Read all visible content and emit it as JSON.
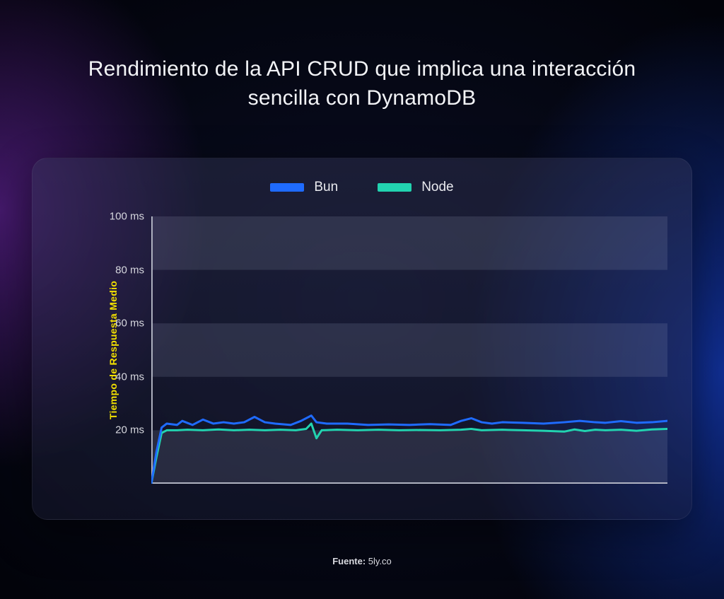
{
  "title": "Rendimiento de la API CRUD que implica una interacción sencilla con DynamoDB",
  "footer_prefix": "Fuente: ",
  "footer_source": "5ly.co",
  "chart": {
    "type": "line",
    "background_color": "transparent",
    "panel_bg": "rgba(55,58,92,0.42)",
    "y_axis": {
      "label": "Tiempo de Respuesta Medio",
      "label_color": "#f2e000",
      "min": 0,
      "max": 100,
      "ticks": [
        20,
        40,
        60,
        80,
        100
      ],
      "tick_suffix": " ms",
      "tick_color": "#d6d7de",
      "tick_fontsize": 15
    },
    "grid": {
      "band_color_a": "rgba(150,155,185,0.18)",
      "band_color_b": "rgba(0,0,0,0.00)",
      "axis_color": "#b9bcc9",
      "axis_width": 1.4
    },
    "x_axis": {
      "min": 0,
      "max": 100
    },
    "line_width": 3,
    "legend": {
      "items": [
        {
          "key": "bun",
          "label": "Bun",
          "color": "#1f6bff"
        },
        {
          "key": "node",
          "label": "Node",
          "color": "#22d3b0"
        }
      ],
      "swatch_w": 48,
      "swatch_h": 12,
      "gap": 56,
      "fontsize": 19
    },
    "series": {
      "bun": {
        "color": "#1f6bff",
        "points": [
          [
            0,
            0
          ],
          [
            1,
            12
          ],
          [
            2,
            21
          ],
          [
            3,
            22.5
          ],
          [
            5,
            22
          ],
          [
            6,
            23.5
          ],
          [
            8,
            22
          ],
          [
            10,
            24
          ],
          [
            12,
            22.5
          ],
          [
            14,
            23
          ],
          [
            16,
            22.5
          ],
          [
            18,
            23
          ],
          [
            20,
            25
          ],
          [
            22,
            23
          ],
          [
            24,
            22.5
          ],
          [
            27,
            22
          ],
          [
            29,
            23.5
          ],
          [
            31,
            25.5
          ],
          [
            32,
            23
          ],
          [
            34,
            22.5
          ],
          [
            38,
            22.5
          ],
          [
            42,
            22
          ],
          [
            46,
            22.2
          ],
          [
            50,
            22
          ],
          [
            54,
            22.3
          ],
          [
            58,
            22
          ],
          [
            60,
            23.5
          ],
          [
            62,
            24.5
          ],
          [
            64,
            23
          ],
          [
            66,
            22.5
          ],
          [
            68,
            23
          ],
          [
            72,
            22.8
          ],
          [
            76,
            22.5
          ],
          [
            80,
            23
          ],
          [
            83,
            23.5
          ],
          [
            86,
            23
          ],
          [
            88,
            22.8
          ],
          [
            91,
            23.4
          ],
          [
            94,
            22.8
          ],
          [
            97,
            23
          ],
          [
            100,
            23.5
          ]
        ]
      },
      "node": {
        "color": "#22d3b0",
        "points": [
          [
            0,
            0
          ],
          [
            1,
            10
          ],
          [
            2,
            19
          ],
          [
            3,
            20
          ],
          [
            5,
            20
          ],
          [
            7,
            20.2
          ],
          [
            10,
            20
          ],
          [
            13,
            20.3
          ],
          [
            16,
            20
          ],
          [
            19,
            20.2
          ],
          [
            22,
            20
          ],
          [
            25,
            20.2
          ],
          [
            28,
            20
          ],
          [
            30,
            20.5
          ],
          [
            31,
            22.5
          ],
          [
            32,
            17
          ],
          [
            33,
            20
          ],
          [
            36,
            20.2
          ],
          [
            40,
            20
          ],
          [
            44,
            20.2
          ],
          [
            48,
            20
          ],
          [
            52,
            20.1
          ],
          [
            56,
            20
          ],
          [
            60,
            20.2
          ],
          [
            62,
            20.5
          ],
          [
            64,
            20
          ],
          [
            68,
            20.2
          ],
          [
            72,
            20
          ],
          [
            76,
            19.8
          ],
          [
            80,
            19.5
          ],
          [
            82,
            20.3
          ],
          [
            84,
            19.7
          ],
          [
            86,
            20.2
          ],
          [
            88,
            20
          ],
          [
            91,
            20.2
          ],
          [
            94,
            19.8
          ],
          [
            97,
            20.3
          ],
          [
            100,
            20.5
          ]
        ]
      }
    }
  }
}
